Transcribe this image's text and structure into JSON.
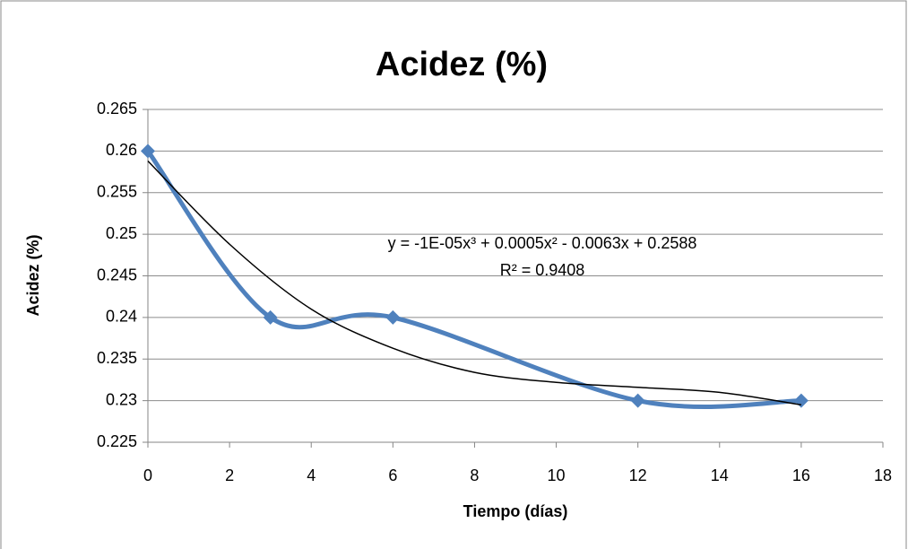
{
  "chart_data": {
    "type": "scatter-smooth",
    "title": "Acidez (%)",
    "x_label": "Tiempo (días)",
    "y_label": "Acidez (%)",
    "annotations": [
      "y = -1E-05x³ + 0.0005x² - 0.0063x + 0.2588",
      "R² = 0.9408"
    ],
    "series": [
      {
        "x": [
          0,
          3,
          6,
          12,
          16
        ],
        "values": [
          0.26,
          0.24,
          0.24,
          0.23,
          0.23
        ],
        "color": "#4f81bd",
        "marker": "diamond"
      },
      {
        "x": [
          0,
          2,
          4,
          6,
          8,
          10,
          12,
          14,
          16
        ],
        "values": [
          0.2588,
          0.2488,
          0.241,
          0.2363,
          0.2334,
          0.2322,
          0.2316,
          0.231,
          0.2295
        ],
        "color": "#000000",
        "marker": "none"
      }
    ],
    "xlim": [
      0,
      18
    ],
    "xticks": [
      0,
      2,
      4,
      6,
      8,
      10,
      12,
      14,
      16,
      18
    ],
    "ylim": [
      0.225,
      0.265
    ],
    "yticks": [
      {
        "value": 0.225,
        "label": "0.225"
      },
      {
        "value": 0.23,
        "label": "0.23"
      },
      {
        "value": 0.235,
        "label": "0.235"
      },
      {
        "value": 0.24,
        "label": "0.24"
      },
      {
        "value": 0.245,
        "label": "0.245"
      },
      {
        "value": 0.25,
        "label": "0.25"
      },
      {
        "value": 0.255,
        "label": "0.255"
      },
      {
        "value": 0.26,
        "label": "0.26"
      },
      {
        "value": 0.265,
        "label": "0.265"
      }
    ],
    "grid": true
  }
}
